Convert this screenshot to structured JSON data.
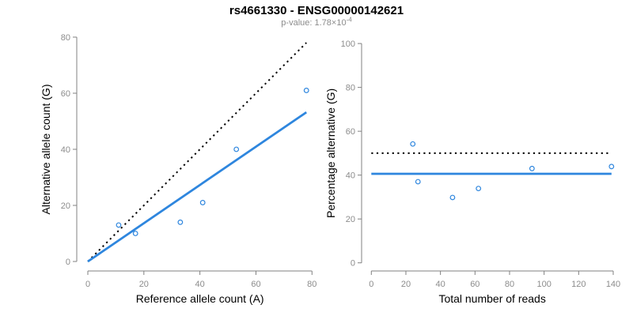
{
  "title": "rs4661330 - ENSG00000142621",
  "subtitle": {
    "prefix": "p-value: 1.78×10",
    "exponent": "-4"
  },
  "colors": {
    "accent_blue": "#2e86de",
    "line_black": "#000000",
    "axis_gray": "#808080",
    "tick_label_gray": "#8c8c8c",
    "axis_title_black": "#000000"
  },
  "chart_data": [
    {
      "type": "scatter",
      "name": "ref-vs-alt-counts",
      "xlabel": "Reference allele count (A)",
      "ylabel": "Alternative allele count (G)",
      "xlim": [
        0,
        80
      ],
      "ylim": [
        0,
        80
      ],
      "xticks": [
        0,
        20,
        40,
        60,
        80
      ],
      "yticks": [
        0,
        20,
        40,
        60,
        80
      ],
      "grid": false,
      "legend": null,
      "marker": "open-circle",
      "points": [
        [
          11,
          13
        ],
        [
          17,
          10
        ],
        [
          33,
          14
        ],
        [
          41,
          21
        ],
        [
          53,
          40
        ],
        [
          78,
          61
        ]
      ],
      "lines": [
        {
          "name": "identity-line",
          "style": "dotted",
          "color_key": "line_black",
          "x1": 0,
          "y1": 0,
          "x2": 78,
          "y2": 78
        },
        {
          "name": "fitted-ratio-line",
          "style": "solid",
          "color_key": "accent_blue",
          "x1": 0,
          "y1": 0,
          "x2": 78,
          "y2": 53.2
        }
      ]
    },
    {
      "type": "scatter",
      "name": "reads-vs-percentage",
      "xlabel": "Total number of reads",
      "ylabel": "Percentage alternative (G)",
      "xlim": [
        0,
        140
      ],
      "ylim": [
        0,
        100
      ],
      "xticks": [
        0,
        20,
        40,
        60,
        80,
        100,
        120,
        140
      ],
      "yticks": [
        0,
        20,
        40,
        60,
        80,
        100
      ],
      "grid": false,
      "legend": null,
      "marker": "open-circle",
      "points": [
        [
          24,
          54.2
        ],
        [
          27,
          37.0
        ],
        [
          47,
          29.8
        ],
        [
          62,
          33.9
        ],
        [
          93,
          43.0
        ],
        [
          139,
          43.9
        ]
      ],
      "lines": [
        {
          "name": "expected-50-percent-line",
          "style": "dotted",
          "color_key": "line_black",
          "x1": 0,
          "y1": 50,
          "x2": 139,
          "y2": 50
        },
        {
          "name": "mean-percentage-line",
          "style": "solid",
          "color_key": "accent_blue",
          "x1": 0,
          "y1": 40.6,
          "x2": 139,
          "y2": 40.6
        }
      ]
    }
  ]
}
